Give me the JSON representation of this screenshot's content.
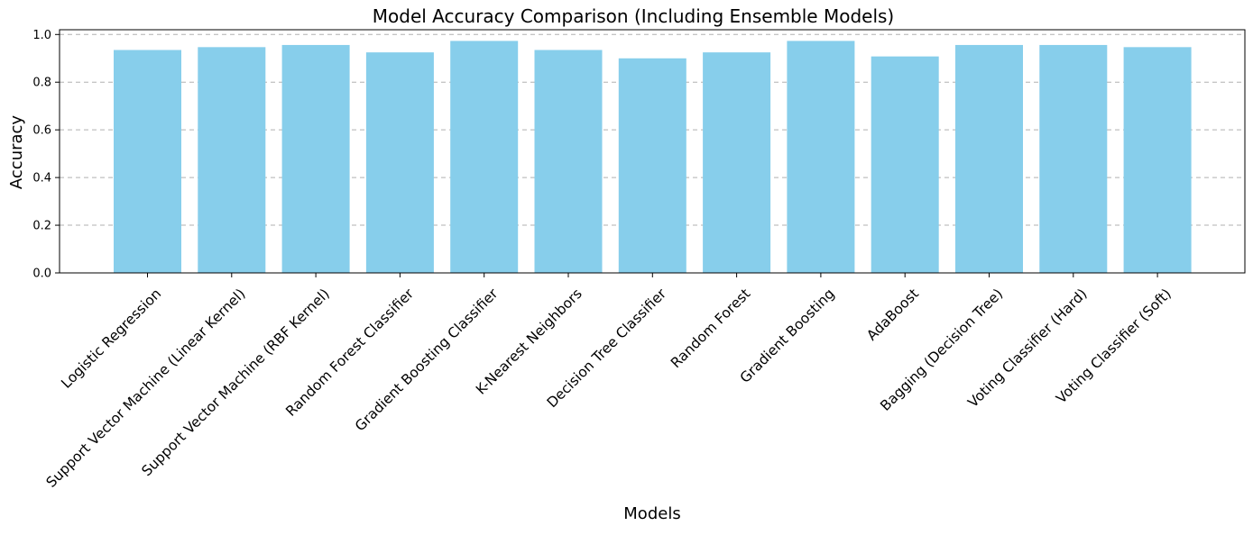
{
  "chart_data": {
    "type": "bar",
    "title": "Model Accuracy Comparison (Including Ensemble Models)",
    "xlabel": "Models",
    "ylabel": "Accuracy",
    "categories": [
      "Logistic Regression",
      "Support Vector Machine (Linear Kernel)",
      "Support Vector Machine (RBF Kernel)",
      "Random Forest Classifier",
      "Gradient Boosting Classifier",
      "K-Nearest Neighbors",
      "Decision Tree Classifier",
      "Random Forest",
      "Gradient Boosting",
      "AdaBoost",
      "Bagging (Decision Tree)",
      "Voting Classifier (Hard)",
      "Voting Classifier (Soft)"
    ],
    "values": [
      0.935,
      0.947,
      0.956,
      0.925,
      0.973,
      0.935,
      0.9,
      0.925,
      0.973,
      0.908,
      0.956,
      0.956,
      0.947
    ],
    "ylim": [
      0,
      1.02
    ],
    "yticks": [
      0.0,
      0.2,
      0.4,
      0.6,
      0.8,
      1.0
    ],
    "ytick_labels": [
      "0.0",
      "0.2",
      "0.4",
      "0.6",
      "0.8",
      "1.0"
    ],
    "grid": "y-dashed",
    "legend": "none",
    "bar_color": "#87ceeb",
    "grid_color": "#b0b0b0"
  }
}
